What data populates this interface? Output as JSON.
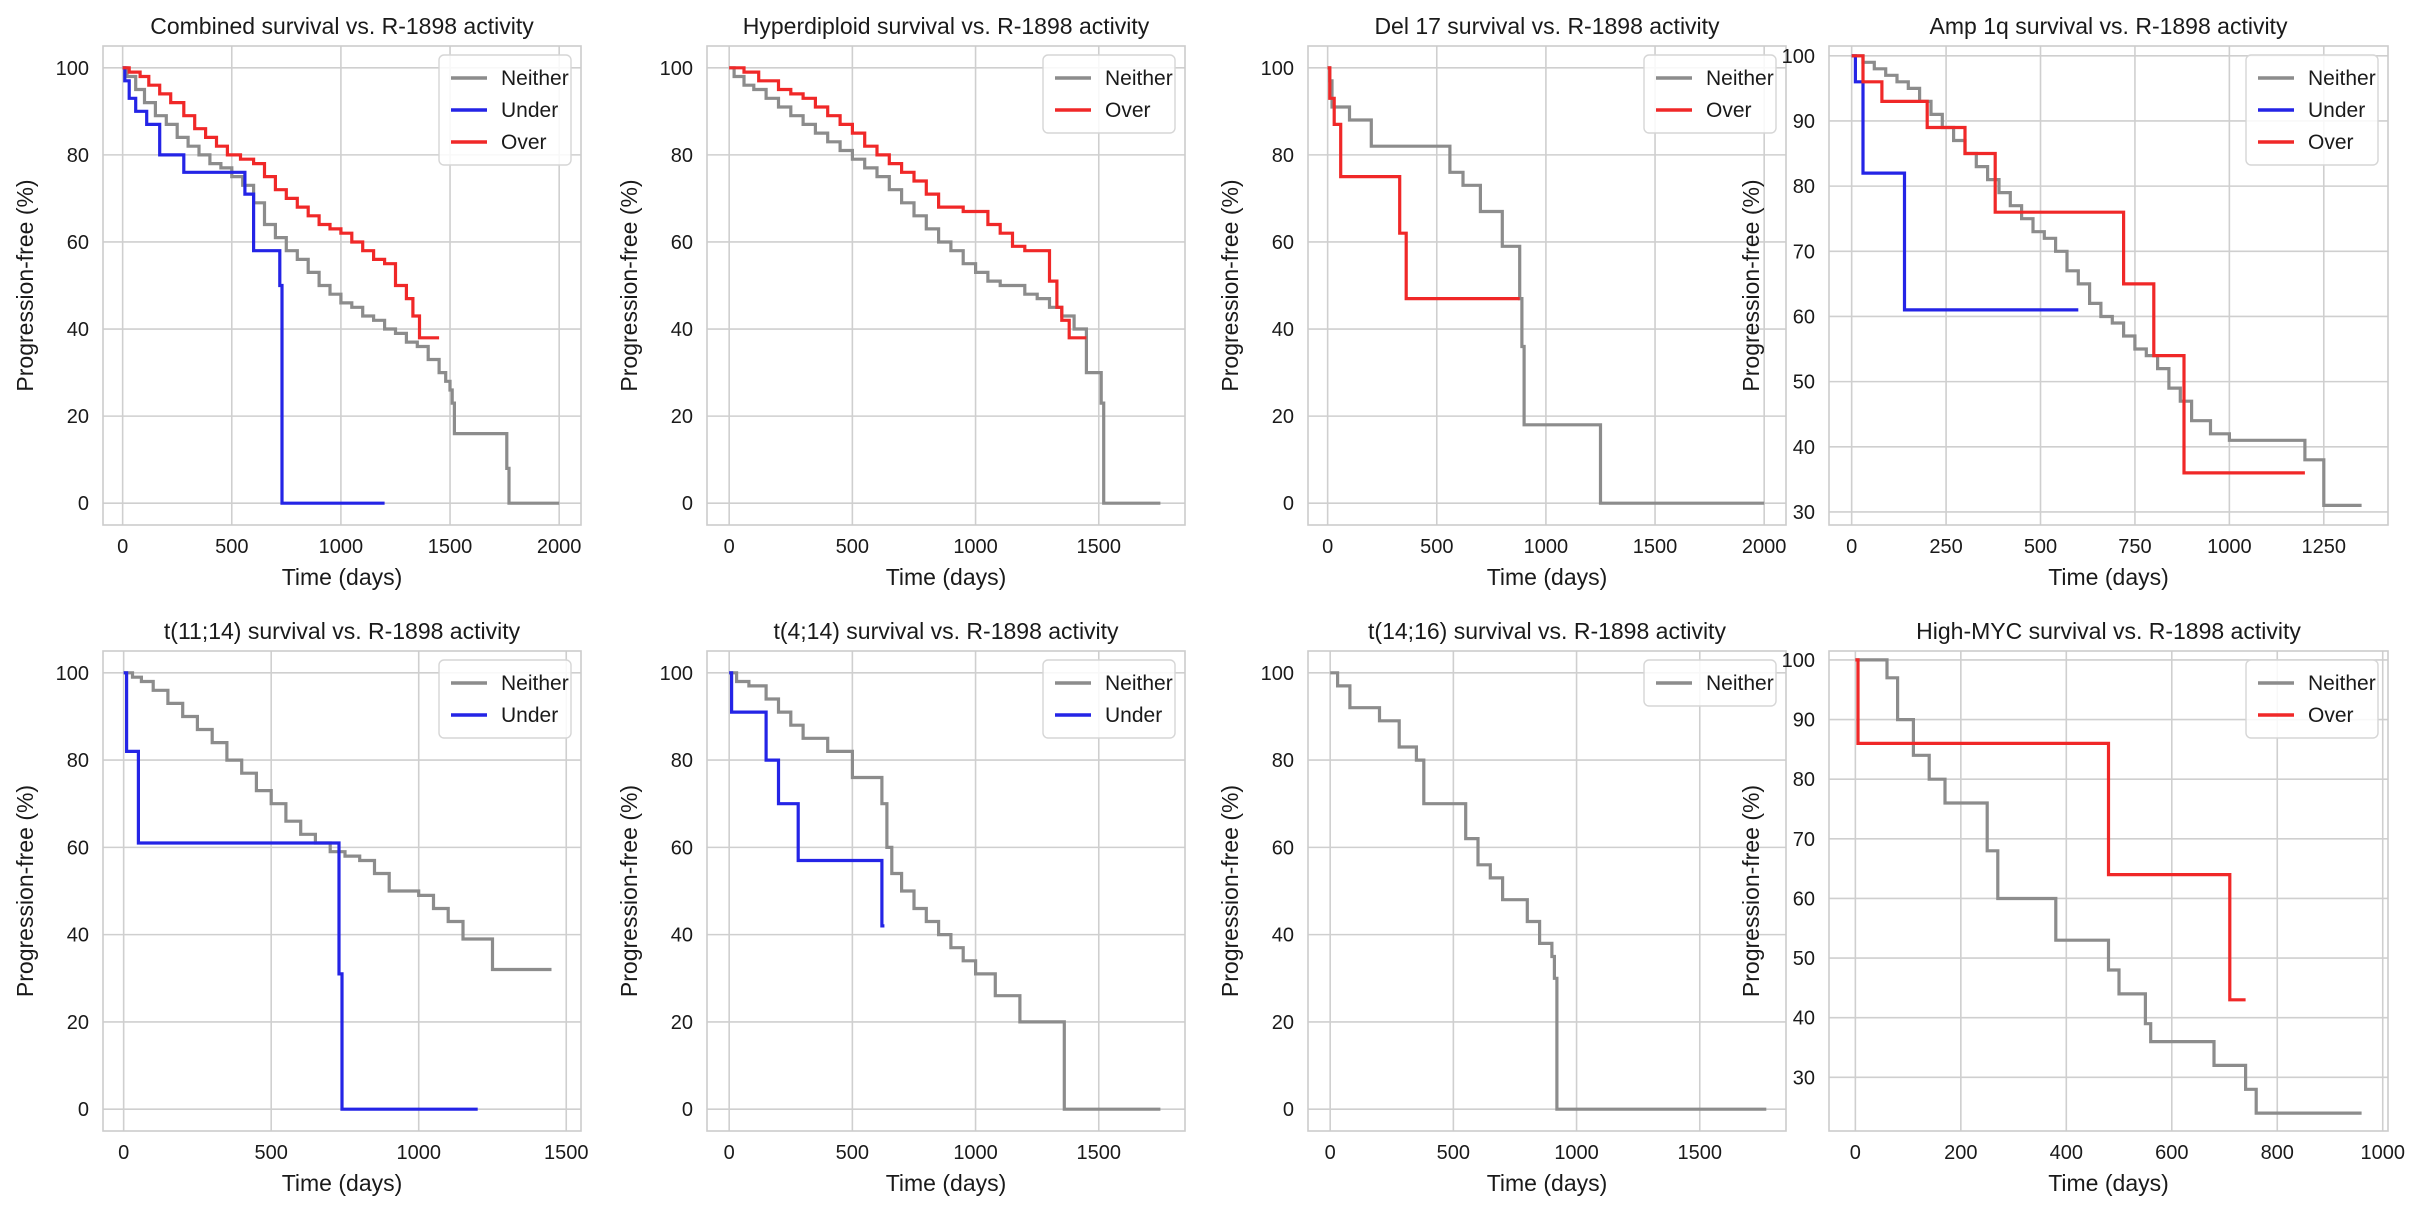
{
  "figure": {
    "background": "#ffffff"
  },
  "colors": {
    "Neither": "#8c8c8c",
    "Under": "#2424e6",
    "Over": "#f02828",
    "grid": "#cfcfcf",
    "spine": "#cccccc"
  },
  "chart_data": [
    {
      "type": "line",
      "title": "Combined survival vs. R-1898 activity",
      "xlabel": "Time (days)",
      "ylabel": "Progression-free (%)",
      "xlim": [
        -90,
        2100
      ],
      "ylim": [
        -5,
        105
      ],
      "xticks": [
        0,
        500,
        1000,
        1500,
        2000
      ],
      "yticks": [
        0,
        20,
        40,
        60,
        80,
        100
      ],
      "legend": "top-right",
      "series": [
        {
          "name": "Neither",
          "x": [
            0,
            20,
            60,
            100,
            150,
            200,
            250,
            300,
            350,
            400,
            450,
            500,
            550,
            600,
            650,
            700,
            750,
            800,
            850,
            900,
            950,
            1000,
            1050,
            1100,
            1150,
            1200,
            1250,
            1300,
            1350,
            1400,
            1450,
            1480,
            1500,
            1510,
            1520,
            1760,
            1770,
            2000
          ],
          "y": [
            100,
            98,
            95,
            92,
            89,
            87,
            84,
            82,
            80,
            78,
            77,
            75,
            73,
            69,
            64,
            61,
            58,
            56,
            53,
            50,
            48,
            46,
            45,
            43,
            42,
            40,
            39,
            37,
            36,
            33,
            30,
            28,
            26,
            23,
            16,
            8,
            0,
            0
          ]
        },
        {
          "name": "Under",
          "x": [
            0,
            10,
            30,
            60,
            110,
            170,
            280,
            560,
            600,
            720,
            730,
            1200
          ],
          "y": [
            100,
            97,
            93,
            90,
            87,
            80,
            76,
            71,
            58,
            50,
            0,
            0
          ]
        },
        {
          "name": "Over",
          "x": [
            0,
            30,
            80,
            120,
            170,
            220,
            280,
            330,
            380,
            430,
            480,
            540,
            600,
            650,
            700,
            750,
            800,
            850,
            900,
            950,
            1000,
            1050,
            1100,
            1150,
            1200,
            1250,
            1300,
            1330,
            1360,
            1400,
            1450
          ],
          "y": [
            100,
            99,
            98,
            96,
            94,
            92,
            89,
            86,
            84,
            82,
            80,
            79,
            78,
            75,
            72,
            70,
            68,
            66,
            64,
            63,
            62,
            60,
            58,
            56,
            55,
            50,
            47,
            43,
            38,
            38,
            38
          ]
        }
      ]
    },
    {
      "type": "line",
      "title": "Hyperdiploid survival vs. R-1898 activity",
      "xlabel": "Time (days)",
      "ylabel": "Progression-free (%)",
      "xlim": [
        -90,
        1850
      ],
      "ylim": [
        -5,
        105
      ],
      "xticks": [
        0,
        500,
        1000,
        1500
      ],
      "yticks": [
        0,
        20,
        40,
        60,
        80,
        100
      ],
      "legend": "top-right",
      "series": [
        {
          "name": "Neither",
          "x": [
            0,
            20,
            60,
            100,
            150,
            200,
            250,
            300,
            350,
            400,
            450,
            500,
            550,
            600,
            650,
            700,
            750,
            800,
            850,
            900,
            950,
            1000,
            1050,
            1100,
            1150,
            1200,
            1250,
            1300,
            1350,
            1400,
            1450,
            1500,
            1510,
            1520,
            1750
          ],
          "y": [
            100,
            98,
            96,
            95,
            93,
            91,
            89,
            87,
            85,
            83,
            81,
            79,
            77,
            75,
            72,
            69,
            66,
            63,
            60,
            58,
            55,
            53,
            51,
            50,
            50,
            48,
            47,
            45,
            43,
            40,
            30,
            30,
            23,
            0,
            0
          ]
        },
        {
          "name": "Over",
          "x": [
            0,
            60,
            120,
            200,
            250,
            300,
            350,
            400,
            450,
            500,
            550,
            600,
            650,
            700,
            750,
            800,
            850,
            900,
            950,
            1000,
            1050,
            1100,
            1150,
            1200,
            1250,
            1300,
            1330,
            1350,
            1380,
            1400,
            1450
          ],
          "y": [
            100,
            99,
            97,
            95,
            94,
            93,
            91,
            89,
            87,
            85,
            82,
            80,
            78,
            76,
            74,
            71,
            68,
            68,
            67,
            67,
            64,
            62,
            59,
            58,
            58,
            51,
            45,
            42,
            38,
            38,
            38
          ]
        }
      ]
    },
    {
      "type": "line",
      "title": "Del 17 survival vs. R-1898 activity",
      "xlabel": "Time (days)",
      "ylabel": "Progression-free (%)",
      "xlim": [
        -90,
        2100
      ],
      "ylim": [
        -5,
        105
      ],
      "xticks": [
        0,
        500,
        1000,
        1500,
        2000
      ],
      "yticks": [
        0,
        20,
        40,
        60,
        80,
        100
      ],
      "legend": "top-right",
      "series": [
        {
          "name": "Neither",
          "x": [
            0,
            10,
            20,
            100,
            200,
            500,
            560,
            620,
            700,
            800,
            860,
            880,
            890,
            900,
            1250,
            2000
          ],
          "y": [
            100,
            97,
            91,
            88,
            82,
            82,
            76,
            73,
            67,
            59,
            59,
            47,
            36,
            18,
            0,
            0
          ]
        },
        {
          "name": "Over",
          "x": [
            0,
            10,
            30,
            60,
            330,
            360,
            880
          ],
          "y": [
            100,
            93,
            87,
            75,
            62,
            47,
            47
          ]
        }
      ]
    },
    {
      "type": "line",
      "title": "Amp 1q survival vs. R-1898 activity",
      "xlabel": "Time (days)",
      "ylabel": "Progression-free (%)",
      "xlim": [
        -60,
        1420
      ],
      "ylim": [
        28,
        101.5
      ],
      "xticks": [
        0,
        250,
        500,
        750,
        1000,
        1250
      ],
      "yticks": [
        30,
        40,
        50,
        60,
        70,
        80,
        90,
        100
      ],
      "legend": "top-right",
      "series": [
        {
          "name": "Neither",
          "x": [
            0,
            30,
            60,
            90,
            120,
            150,
            180,
            210,
            240,
            270,
            300,
            330,
            360,
            390,
            420,
            450,
            480,
            510,
            540,
            570,
            600,
            630,
            660,
            690,
            720,
            750,
            780,
            810,
            840,
            870,
            900,
            950,
            1000,
            1100,
            1200,
            1250,
            1300,
            1350
          ],
          "y": [
            100,
            99,
            98,
            97,
            96,
            95,
            93,
            91,
            89,
            87,
            85,
            83,
            81,
            79,
            77,
            75,
            73,
            72,
            70,
            67,
            65,
            62,
            60,
            59,
            57,
            55,
            54,
            52,
            49,
            47,
            44,
            42,
            41,
            41,
            38,
            31,
            31,
            31
          ]
        },
        {
          "name": "Under",
          "x": [
            0,
            10,
            30,
            140,
            600
          ],
          "y": [
            100,
            96,
            82,
            61,
            61
          ]
        },
        {
          "name": "Over",
          "x": [
            0,
            30,
            80,
            200,
            300,
            380,
            700,
            720,
            800,
            880,
            1200
          ],
          "y": [
            100,
            96,
            93,
            89,
            85,
            76,
            76,
            65,
            54,
            36,
            36
          ]
        }
      ]
    },
    {
      "type": "line",
      "title": "t(11;14) survival vs. R-1898 activity",
      "xlabel": "Time (days)",
      "ylabel": "Progression-free (%)",
      "xlim": [
        -70,
        1550
      ],
      "ylim": [
        -5,
        105
      ],
      "xticks": [
        0,
        500,
        1000,
        1500
      ],
      "yticks": [
        0,
        20,
        40,
        60,
        80,
        100
      ],
      "legend": "top-right",
      "series": [
        {
          "name": "Neither",
          "x": [
            0,
            30,
            60,
            100,
            150,
            200,
            250,
            300,
            350,
            400,
            450,
            500,
            550,
            600,
            650,
            700,
            750,
            800,
            850,
            900,
            950,
            1000,
            1050,
            1100,
            1150,
            1200,
            1250,
            1450
          ],
          "y": [
            100,
            99,
            98,
            96,
            93,
            90,
            87,
            84,
            80,
            77,
            73,
            70,
            66,
            63,
            61,
            59,
            58,
            57,
            54,
            50,
            50,
            49,
            46,
            43,
            39,
            39,
            32,
            32
          ]
        },
        {
          "name": "Under",
          "x": [
            0,
            10,
            50,
            730,
            740,
            1200
          ],
          "y": [
            100,
            82,
            61,
            31,
            0,
            0
          ]
        }
      ]
    },
    {
      "type": "line",
      "title": "t(4;14) survival vs. R-1898 activity",
      "xlabel": "Time (days)",
      "ylabel": "Progression-free (%)",
      "xlim": [
        -90,
        1850
      ],
      "ylim": [
        -5,
        105
      ],
      "xticks": [
        0,
        500,
        1000,
        1500
      ],
      "yticks": [
        0,
        20,
        40,
        60,
        80,
        100
      ],
      "legend": "top-right",
      "series": [
        {
          "name": "Neither",
          "x": [
            0,
            30,
            80,
            150,
            200,
            250,
            300,
            400,
            500,
            580,
            620,
            640,
            660,
            700,
            750,
            800,
            850,
            900,
            950,
            1000,
            1080,
            1180,
            1360,
            1750
          ],
          "y": [
            100,
            98,
            97,
            94,
            91,
            88,
            85,
            82,
            76,
            76,
            70,
            60,
            54,
            50,
            46,
            43,
            40,
            37,
            34,
            31,
            26,
            20,
            0,
            0
          ]
        },
        {
          "name": "Under",
          "x": [
            0,
            10,
            150,
            200,
            280,
            620,
            630
          ],
          "y": [
            100,
            91,
            80,
            70,
            57,
            42,
            42
          ]
        }
      ]
    },
    {
      "type": "line",
      "title": "t(14;16) survival vs. R-1898 activity",
      "xlabel": "Time (days)",
      "ylabel": "Progression-free (%)",
      "xlim": [
        -90,
        1850
      ],
      "ylim": [
        -5,
        105
      ],
      "xticks": [
        0,
        500,
        1000,
        1500
      ],
      "yticks": [
        0,
        20,
        40,
        60,
        80,
        100
      ],
      "legend": "top-right",
      "series": [
        {
          "name": "Neither",
          "x": [
            0,
            30,
            80,
            200,
            280,
            350,
            380,
            550,
            600,
            650,
            700,
            800,
            850,
            900,
            910,
            920,
            1770
          ],
          "y": [
            100,
            97,
            92,
            89,
            83,
            80,
            70,
            62,
            56,
            53,
            48,
            43,
            38,
            35,
            30,
            0,
            0
          ]
        }
      ]
    },
    {
      "type": "line",
      "title": "High-MYC survival vs. R-1898 activity",
      "xlabel": "Time (days)",
      "ylabel": "Progression-free (%)",
      "xlim": [
        -50,
        1010
      ],
      "ylim": [
        21,
        101.5
      ],
      "xticks": [
        0,
        200,
        400,
        600,
        800,
        1000
      ],
      "yticks": [
        30,
        40,
        50,
        60,
        70,
        80,
        90,
        100
      ],
      "legend": "top-right",
      "series": [
        {
          "name": "Neither",
          "x": [
            0,
            60,
            80,
            110,
            140,
            170,
            250,
            270,
            380,
            480,
            500,
            550,
            560,
            680,
            740,
            760,
            960
          ],
          "y": [
            100,
            97,
            90,
            84,
            80,
            76,
            68,
            60,
            53,
            48,
            44,
            39,
            36,
            32,
            28,
            24,
            24
          ]
        },
        {
          "name": "Over",
          "x": [
            0,
            5,
            470,
            480,
            710,
            740
          ],
          "y": [
            100,
            86,
            86,
            64,
            43,
            43
          ]
        }
      ]
    }
  ]
}
